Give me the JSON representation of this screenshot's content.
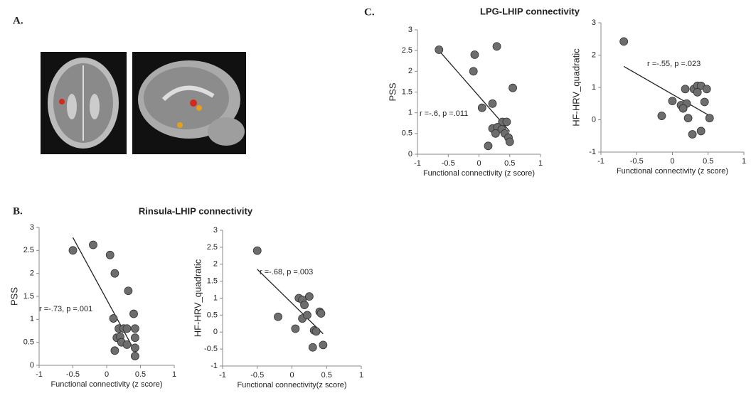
{
  "panel_labels": {
    "a": "A.",
    "b": "B.",
    "c": "C."
  },
  "chart_data": [
    {
      "type": "scatter",
      "title": "LPG-LHIP connectivity",
      "x_label": "Functional connectivity (z score)",
      "y_label": "PSS",
      "annotation": "r =-.6, p =.011",
      "color": "#6d6d6d",
      "x": [
        -0.65,
        -0.07,
        0.29,
        -0.09,
        0.55,
        0.22,
        0.05,
        0.38,
        0.22,
        0.45,
        0.3,
        0.37,
        0.27,
        0.42,
        0.48,
        0.5,
        0.15
      ],
      "values": [
        2.52,
        2.4,
        2.6,
        2.0,
        1.6,
        1.22,
        1.12,
        0.78,
        0.62,
        0.78,
        0.65,
        0.6,
        0.5,
        0.5,
        0.4,
        0.3,
        0.2
      ],
      "trendline": {
        "x": [
          -0.65,
          0.5
        ],
        "values": [
          2.5,
          0.55
        ]
      },
      "xlim": [
        -1,
        1
      ],
      "xticks": [
        -1,
        -0.5,
        0,
        0.5,
        1
      ],
      "ylim": [
        0,
        3
      ],
      "yticks": [
        0,
        0.5,
        1,
        1.5,
        2,
        2.5,
        3
      ]
    },
    {
      "type": "scatter",
      "x_label": "Functional connectivity (z score)",
      "y_label": "HF-HRV_quadratic",
      "annotation": "r =-.55, p =.023",
      "color": "#6d6d6d",
      "x": [
        -0.68,
        0,
        0.12,
        0.18,
        0.2,
        0.22,
        0.28,
        0.3,
        0.35,
        0.4,
        0.48,
        0.45,
        0.4,
        0.52,
        -0.15,
        0.15,
        0.35
      ],
      "values": [
        2.42,
        0.58,
        0.45,
        0.95,
        0.5,
        0.05,
        -0.45,
        0.95,
        1.05,
        1.05,
        0.95,
        0.55,
        -0.35,
        0.05,
        0.12,
        0.35,
        0.85
      ],
      "trendline": {
        "x": [
          -0.68,
          0.5
        ],
        "values": [
          1.65,
          0.15
        ]
      },
      "xlim": [
        -1,
        1
      ],
      "xticks": [
        -1,
        -0.5,
        0,
        0.5,
        1
      ],
      "ylim": [
        -1,
        3
      ],
      "yticks": [
        -1,
        0,
        1,
        2,
        3
      ]
    },
    {
      "type": "scatter",
      "title": "Rinsula-LHIP connectivity",
      "x_label": "Functional connectivity (z score)",
      "y_label": "PSS",
      "annotation": "r =-.73, p =.001",
      "color": "#6d6d6d",
      "x": [
        -0.5,
        -0.2,
        0.05,
        0.12,
        0.32,
        0.1,
        0.4,
        0.18,
        0.25,
        0.3,
        0.42,
        0.15,
        0.2,
        0.42,
        0.22,
        0.3,
        0.42,
        0.12,
        0.42
      ],
      "values": [
        2.5,
        2.62,
        2.4,
        2.0,
        1.62,
        1.02,
        1.12,
        0.8,
        0.8,
        0.8,
        0.8,
        0.6,
        0.62,
        0.6,
        0.5,
        0.45,
        0.38,
        0.32,
        0.2
      ],
      "trendline": {
        "x": [
          -0.5,
          0.4
        ],
        "values": [
          2.78,
          0.35
        ]
      },
      "xlim": [
        -1,
        1
      ],
      "xticks": [
        -1,
        -0.5,
        0,
        0.5,
        1
      ],
      "ylim": [
        0,
        3
      ],
      "yticks": [
        0,
        0.5,
        1,
        1.5,
        2,
        2.5,
        3
      ]
    },
    {
      "type": "scatter",
      "x_label": "Functional connectivity(z score)",
      "y_label": "HF-HRV_quadratic",
      "annotation": "r =-.68, p =.003",
      "color": "#6d6d6d",
      "x": [
        -0.5,
        -0.2,
        0.05,
        0.1,
        0.15,
        0.18,
        0.15,
        0.25,
        0.22,
        0.32,
        0.3,
        0.4,
        0.42,
        0.45,
        0.35
      ],
      "values": [
        2.4,
        0.45,
        0.1,
        1.0,
        0.95,
        0.8,
        0.4,
        1.05,
        0.5,
        0.05,
        -0.45,
        0.6,
        0.55,
        -0.38,
        0.02
      ],
      "trendline": {
        "x": [
          -0.5,
          0.45
        ],
        "values": [
          1.85,
          -0.05
        ]
      },
      "xlim": [
        -1,
        1
      ],
      "xticks": [
        -1,
        -0.5,
        0,
        0.5,
        1
      ],
      "ylim": [
        -1,
        3
      ],
      "yticks": [
        -1,
        -0.5,
        0,
        0.5,
        1,
        1.5,
        2,
        2.5,
        3
      ]
    }
  ]
}
